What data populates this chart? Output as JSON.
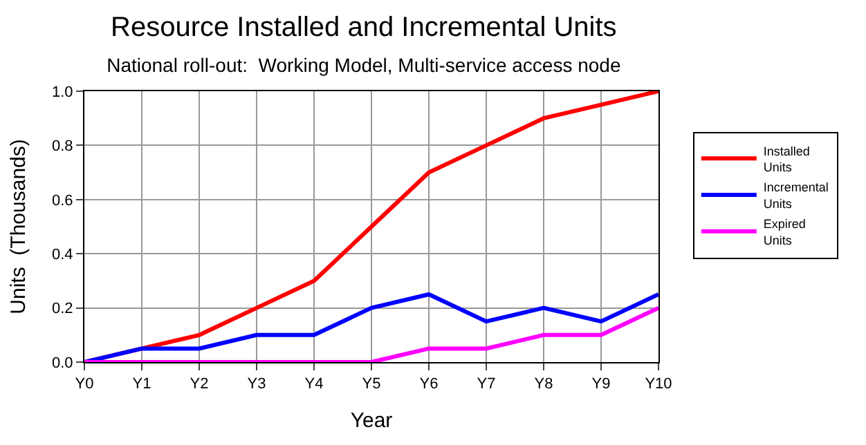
{
  "chart_data": {
    "type": "line",
    "title": "Resource Installed and Incremental Units",
    "subtitle": "National roll-out:  Working Model, Multi-service access node",
    "xlabel": "Year",
    "ylabel": "Units  (Thousands)",
    "categories": [
      "Y0",
      "Y1",
      "Y2",
      "Y3",
      "Y4",
      "Y5",
      "Y6",
      "Y7",
      "Y8",
      "Y9",
      "Y10"
    ],
    "series": [
      {
        "name": "Installed Units",
        "color": "#ff0000",
        "values": [
          0,
          0.05,
          0.1,
          0.2,
          0.3,
          0.5,
          0.7,
          0.8,
          0.9,
          0.95,
          1.0
        ]
      },
      {
        "name": "Incremental Units",
        "color": "#0000ff",
        "values": [
          0,
          0.05,
          0.05,
          0.1,
          0.1,
          0.2,
          0.25,
          0.15,
          0.2,
          0.15,
          0.25
        ]
      },
      {
        "name": "Expired Units",
        "color": "#ff00ff",
        "values": [
          0,
          0,
          0,
          0,
          0,
          0,
          0.05,
          0.05,
          0.1,
          0.1,
          0.2
        ]
      }
    ],
    "ylim": [
      0,
      1.0
    ],
    "yticks": [
      {
        "value": 0,
        "label": "0.0"
      },
      {
        "value": 0.2,
        "label": "0.2"
      },
      {
        "value": 0.4,
        "label": "0.4"
      },
      {
        "value": 0.6,
        "label": "0.6"
      },
      {
        "value": 0.8,
        "label": "0.8"
      },
      {
        "value": 1.0,
        "label": "1.0"
      }
    ],
    "grid": true,
    "legend": "right",
    "marker": "none",
    "line_style": "solid"
  }
}
